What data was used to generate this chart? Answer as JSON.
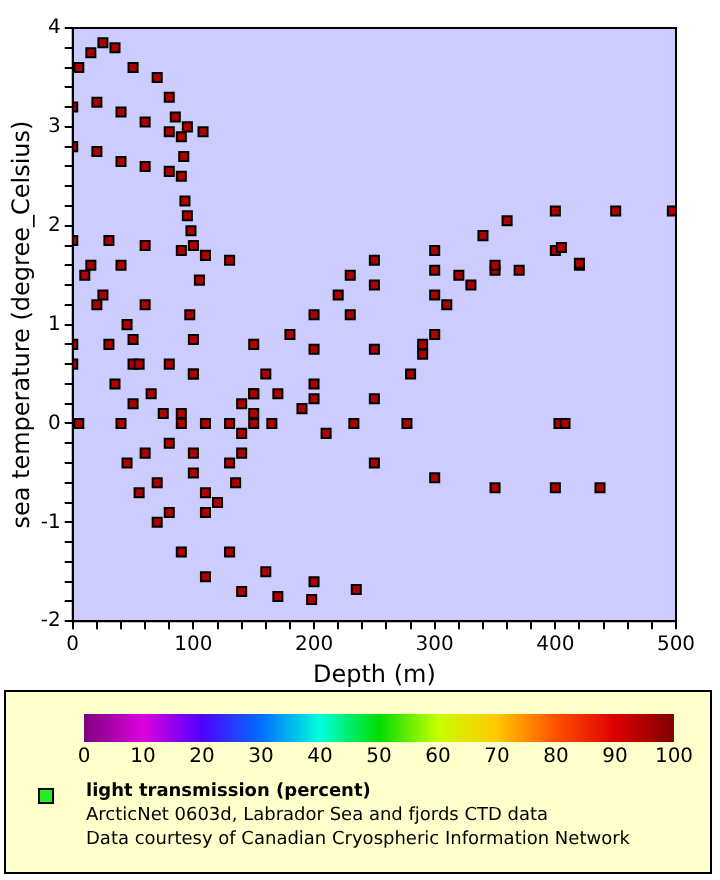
{
  "chart_data": {
    "type": "scatter",
    "xlabel": "Depth (m)",
    "ylabel": "sea temperature (degree_Celsius)",
    "clabel": "light transmission (percent)",
    "annotations": [
      "ArcticNet 0603d, Labrador Sea and fjords CTD data",
      "Data courtesy of Canadian Cryospheric Information Network"
    ],
    "x": [
      5,
      15,
      25,
      35,
      50,
      70,
      80,
      85,
      90,
      95,
      108,
      0,
      20,
      40,
      60,
      80,
      92,
      0,
      20,
      40,
      60,
      80,
      90,
      93,
      95,
      98,
      100,
      0,
      30,
      60,
      90,
      110,
      130,
      10,
      20,
      30,
      35,
      40,
      45,
      55,
      70,
      90,
      110,
      140,
      170,
      198,
      40,
      60,
      80,
      90,
      100,
      110,
      130,
      160,
      200,
      235,
      0,
      50,
      100,
      150,
      200,
      250,
      290,
      300,
      310,
      330,
      370,
      420,
      0,
      50,
      100,
      150,
      200,
      250,
      280,
      290,
      300,
      320,
      350,
      400,
      405,
      140,
      160,
      180,
      200,
      220,
      230,
      250,
      300,
      340,
      360,
      400,
      450,
      497,
      100,
      150,
      190,
      210,
      250,
      300,
      350,
      400,
      437,
      130,
      140,
      150,
      170,
      200,
      230,
      250,
      300,
      350,
      420,
      90,
      100,
      110,
      120,
      135,
      140,
      5,
      110,
      130,
      150,
      165,
      233,
      277,
      403,
      408,
      15,
      25,
      45,
      55,
      65,
      75,
      80,
      50,
      60,
      70,
      80,
      97,
      105
    ],
    "values": [
      3.6,
      3.75,
      3.85,
      3.8,
      3.6,
      3.5,
      3.3,
      3.1,
      2.9,
      3.0,
      2.95,
      3.2,
      3.25,
      3.15,
      3.05,
      2.95,
      2.7,
      2.8,
      2.75,
      2.65,
      2.6,
      2.55,
      2.5,
      2.25,
      2.1,
      1.95,
      1.8,
      1.85,
      1.85,
      1.8,
      1.75,
      1.7,
      1.65,
      1.5,
      1.2,
      0.8,
      0.4,
      0.0,
      -0.4,
      -0.7,
      -1.0,
      -1.3,
      -1.55,
      -1.7,
      -1.75,
      -1.78,
      1.6,
      1.2,
      0.6,
      0.0,
      -0.5,
      -0.9,
      -1.3,
      -1.5,
      -1.6,
      -1.68,
      0.8,
      0.85,
      0.85,
      0.8,
      0.75,
      0.75,
      0.8,
      0.9,
      1.2,
      1.4,
      1.55,
      1.6,
      0.6,
      0.6,
      0.5,
      0.3,
      0.25,
      0.25,
      0.5,
      0.7,
      1.3,
      1.5,
      1.55,
      1.75,
      1.78,
      0.2,
      0.5,
      0.9,
      1.1,
      1.3,
      1.5,
      1.65,
      1.75,
      1.9,
      2.05,
      2.15,
      2.15,
      2.15,
      0.5,
      0.3,
      0.15,
      -0.1,
      -0.4,
      -0.55,
      -0.65,
      -0.65,
      -0.65,
      -0.4,
      -0.1,
      0.1,
      0.3,
      0.4,
      1.1,
      1.4,
      1.55,
      1.6,
      1.62,
      0.1,
      -0.3,
      -0.7,
      -0.8,
      -0.6,
      -0.3,
      0,
      0,
      0,
      0,
      0,
      0,
      0,
      0,
      0,
      1.6,
      1.3,
      1.0,
      0.6,
      0.3,
      0.1,
      -0.2,
      0.2,
      -0.3,
      -0.6,
      -0.9,
      1.1,
      1.45
    ],
    "cvalues": [
      95,
      95,
      95,
      95,
      95,
      95,
      95,
      95,
      95,
      95,
      95,
      95,
      95,
      95,
      95,
      95,
      95,
      95,
      95,
      95,
      95,
      95,
      95,
      95,
      95,
      95,
      95,
      95,
      95,
      95,
      95,
      95,
      95,
      95,
      95,
      95,
      95,
      95,
      95,
      95,
      95,
      95,
      95,
      95,
      95,
      95,
      95,
      95,
      95,
      95,
      95,
      95,
      95,
      95,
      95,
      95,
      95,
      95,
      95,
      95,
      95,
      95,
      95,
      95,
      95,
      95,
      95,
      95,
      95,
      95,
      95,
      95,
      95,
      95,
      95,
      95,
      95,
      95,
      95,
      95,
      95,
      95,
      95,
      95,
      95,
      95,
      95,
      95,
      95,
      95,
      95,
      95,
      95,
      95,
      95,
      95,
      95,
      95,
      95,
      95,
      95,
      95,
      95,
      95,
      95,
      95,
      95,
      95,
      95,
      95,
      95,
      95,
      95,
      95,
      95,
      95,
      95,
      95,
      95,
      95,
      95,
      95,
      95,
      95,
      95,
      95,
      95,
      95,
      95,
      95,
      95,
      95,
      95,
      95,
      95,
      95,
      95,
      95,
      95,
      95,
      95
    ],
    "xlim": [
      0,
      500
    ],
    "xticks": [
      0,
      {
        "value": 20,
        "label": null
      },
      {
        "value": 40,
        "label": null
      },
      {
        "value": 60,
        "label": null
      },
      {
        "value": 80,
        "label": null
      },
      100,
      {
        "value": 120,
        "label": null
      },
      {
        "value": 140,
        "label": null
      },
      {
        "value": 160,
        "label": null
      },
      {
        "value": 180,
        "label": null
      },
      200,
      {
        "value": 220,
        "label": null
      },
      {
        "value": 240,
        "label": null
      },
      {
        "value": 260,
        "label": null
      },
      {
        "value": 280,
        "label": null
      },
      300,
      {
        "value": 320,
        "label": null
      },
      {
        "value": 340,
        "label": null
      },
      {
        "value": 360,
        "label": null
      },
      {
        "value": 380,
        "label": null
      },
      400,
      {
        "value": 420,
        "label": null
      },
      {
        "value": 440,
        "label": null
      },
      {
        "value": 460,
        "label": null
      },
      {
        "value": 480,
        "label": null
      },
      500
    ],
    "ylim": [
      -2,
      4
    ],
    "yticks": [
      -2,
      {
        "value": -1.8,
        "label": null
      },
      {
        "value": -1.6,
        "label": null
      },
      {
        "value": -1.4,
        "label": null
      },
      {
        "value": -1.2,
        "label": null
      },
      -1,
      {
        "value": -0.8,
        "label": null
      },
      {
        "value": -0.6,
        "label": null
      },
      {
        "value": -0.4,
        "label": null
      },
      {
        "value": -0.2,
        "label": null
      },
      0,
      {
        "value": 0.2,
        "label": null
      },
      {
        "value": 0.4,
        "label": null
      },
      {
        "value": 0.6,
        "label": null
      },
      {
        "value": 0.8,
        "label": null
      },
      1,
      {
        "value": 1.2,
        "label": null
      },
      {
        "value": 1.4,
        "label": null
      },
      {
        "value": 1.6,
        "label": null
      },
      {
        "value": 1.8,
        "label": null
      },
      2,
      {
        "value": 2.2,
        "label": null
      },
      {
        "value": 2.4,
        "label": null
      },
      {
        "value": 2.6,
        "label": null
      },
      {
        "value": 2.8,
        "label": null
      },
      3,
      {
        "value": 3.2,
        "label": null
      },
      {
        "value": 3.4,
        "label": null
      },
      {
        "value": 3.6,
        "label": null
      },
      {
        "value": 3.8,
        "label": null
      },
      4
    ],
    "clim": [
      0,
      100
    ],
    "cticks": [
      0,
      10,
      20,
      30,
      40,
      50,
      60,
      70,
      80,
      90,
      100
    ],
    "grid": false,
    "legend": false,
    "marker": "square"
  }
}
